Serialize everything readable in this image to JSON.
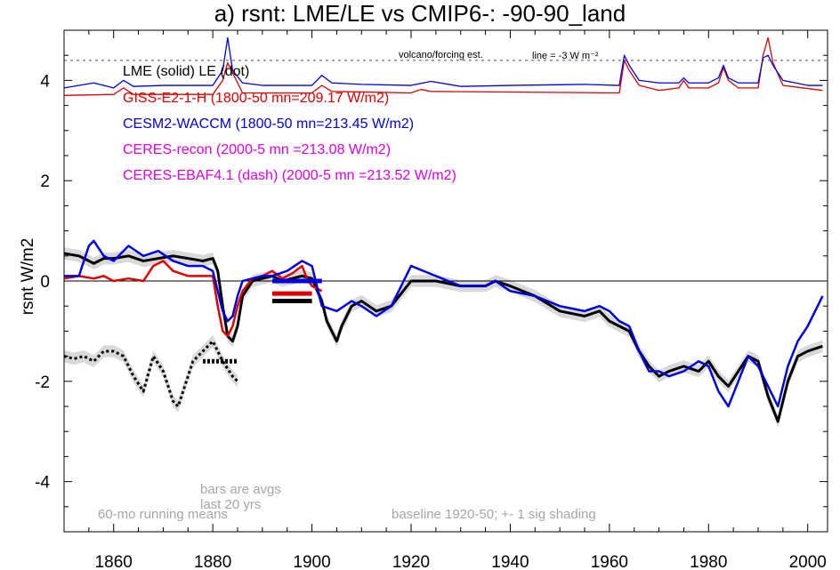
{
  "title": "a) rsnt: LME/LE vs CMIP6-: -90-90_land",
  "chart_data": {
    "type": "line",
    "title": "a) rsnt: LME/LE vs CMIP6-: -90-90_land",
    "xlabel": "",
    "ylabel": "rsnt W/m2",
    "xlim": [
      1850,
      2004
    ],
    "ylim": [
      -5.0,
      5.0
    ],
    "x_ticks": [
      1860,
      1880,
      1900,
      1920,
      1940,
      1960,
      1980,
      2000
    ],
    "y_ticks": [
      -4,
      -2,
      0,
      2,
      4
    ],
    "grid": false,
    "zero_line": 0,
    "legend": {
      "placement": "upper-left",
      "entries": [
        {
          "text": "LME (solid)   LE (dot)",
          "color": "#000000"
        },
        {
          "text": "GISS-E2-1-H (1800-50 mn=209.17 W/m2)",
          "color": "#e00000"
        },
        {
          "text": "CESM2-WACCM (1800-50 mn=213.45 W/m2)",
          "color": "#0000e0"
        },
        {
          "text": "CERES-recon (2000-5 mn =213.08 W/m2)",
          "color": "#e000e0"
        },
        {
          "text": "CERES-EBAF4.1 (dash) (2000-5 mn =213.52 W/m2)",
          "color": "#e000e0"
        }
      ]
    },
    "annotations": {
      "volcano_label": "volcano/forcing est.",
      "line_label": "line = -3 W m⁻²",
      "volcano_line_y": 4.4,
      "bars_note": "bars are avgs\nlast 20 yrs",
      "running_mean_note": "60-mo running means",
      "baseline_note": "baseline 1920-50; +- 1 sig shading"
    },
    "series": [
      {
        "name": "LME (solid)",
        "color": "#000000",
        "style": "solid",
        "x": [
          1850,
          1853,
          1856,
          1858,
          1860,
          1863,
          1866,
          1869,
          1872,
          1875,
          1878,
          1880,
          1881,
          1882,
          1883,
          1884,
          1885,
          1886,
          1888,
          1890,
          1892,
          1894,
          1896,
          1898,
          1900,
          1902,
          1903,
          1904,
          1905,
          1906,
          1908,
          1910,
          1913,
          1916,
          1920,
          1925,
          1930,
          1935,
          1937,
          1940,
          1945,
          1950,
          1955,
          1958,
          1960,
          1962,
          1964,
          1966,
          1968,
          1970,
          1972,
          1975,
          1978,
          1980,
          1982,
          1984,
          1986,
          1988,
          1990,
          1992,
          1994,
          1996,
          1998,
          2000,
          2003
        ],
        "y": [
          0.55,
          0.5,
          0.35,
          0.45,
          0.45,
          0.5,
          0.4,
          0.45,
          0.5,
          0.45,
          0.4,
          0.45,
          0.2,
          -0.5,
          -1.1,
          -1.2,
          -0.9,
          -0.3,
          0.0,
          0.05,
          0.1,
          0.0,
          0.05,
          0.1,
          0.05,
          -0.4,
          -0.8,
          -1.0,
          -1.2,
          -0.9,
          -0.5,
          -0.4,
          -0.6,
          -0.5,
          0.0,
          0.0,
          -0.1,
          -0.1,
          0.0,
          -0.1,
          -0.3,
          -0.6,
          -0.7,
          -0.6,
          -0.8,
          -0.9,
          -1.0,
          -1.4,
          -1.7,
          -1.9,
          -1.8,
          -1.7,
          -1.8,
          -1.6,
          -1.9,
          -2.1,
          -1.8,
          -1.5,
          -1.6,
          -2.3,
          -2.8,
          -2.0,
          -1.5,
          -1.4,
          -1.3
        ]
      },
      {
        "name": "LE (dot)",
        "color": "#000000",
        "style": "dot",
        "x": [
          1850,
          1852,
          1854,
          1856,
          1858,
          1860,
          1862,
          1864,
          1866,
          1868,
          1870,
          1872,
          1873,
          1874,
          1876,
          1878,
          1880,
          1882,
          1884,
          1885
        ],
        "y": [
          -1.5,
          -1.55,
          -1.5,
          -1.6,
          -1.4,
          -1.4,
          -1.5,
          -1.9,
          -2.2,
          -1.5,
          -1.8,
          -2.4,
          -2.5,
          -2.2,
          -1.6,
          -1.4,
          -1.2,
          -1.6,
          -1.9,
          -2.0
        ]
      },
      {
        "name": "GISS-E2-1-H (1800-50 mn=209.17 W/m2)",
        "color": "#e00000",
        "style": "solid",
        "x": [
          1850,
          1853,
          1856,
          1858,
          1860,
          1863,
          1866,
          1868,
          1870,
          1872,
          1875,
          1878,
          1880,
          1881,
          1882,
          1883,
          1884,
          1885,
          1886,
          1888,
          1890,
          1892,
          1894,
          1896,
          1898,
          1899,
          1900,
          1902
        ],
        "y": [
          0.05,
          0.1,
          0.05,
          0.1,
          0.0,
          0.05,
          0.0,
          0.3,
          0.4,
          0.2,
          0.1,
          0.1,
          0.1,
          -0.5,
          -1.0,
          -1.1,
          -0.9,
          -0.5,
          -0.2,
          0.05,
          0.1,
          0.2,
          0.05,
          0.15,
          0.3,
          0.05,
          -0.1,
          -0.2
        ]
      },
      {
        "name": "CESM2-WACCM (1800-50 mn=213.45 W/m2)",
        "color": "#0000e0",
        "style": "solid",
        "x": [
          1850,
          1853,
          1855,
          1856,
          1858,
          1860,
          1863,
          1866,
          1869,
          1872,
          1875,
          1878,
          1880,
          1882,
          1883,
          1884,
          1885,
          1886,
          1888,
          1890,
          1892,
          1895,
          1898,
          1900,
          1902,
          1905,
          1908,
          1910,
          1913,
          1916,
          1920,
          1925,
          1930,
          1935,
          1937,
          1940,
          1945,
          1950,
          1955,
          1958,
          1960,
          1962,
          1964,
          1966,
          1968,
          1970,
          1972,
          1975,
          1978,
          1980,
          1982,
          1984,
          1986,
          1988,
          1990,
          1992,
          1994,
          1996,
          1998,
          2000,
          2003
        ],
        "y": [
          0.1,
          0.1,
          0.7,
          0.8,
          0.5,
          0.4,
          0.7,
          0.5,
          0.6,
          0.4,
          0.3,
          0.3,
          0.2,
          -0.6,
          -0.8,
          -0.7,
          -0.3,
          0.0,
          0.05,
          0.1,
          0.1,
          0.2,
          0.4,
          0.3,
          -0.5,
          -0.6,
          -0.4,
          -0.5,
          -0.7,
          -0.5,
          0.3,
          0.1,
          -0.1,
          -0.1,
          0.0,
          -0.2,
          -0.3,
          -0.5,
          -0.6,
          -0.5,
          -0.6,
          -0.8,
          -0.9,
          -1.4,
          -1.8,
          -1.8,
          -1.9,
          -1.8,
          -1.6,
          -1.7,
          -2.2,
          -2.5,
          -2.0,
          -1.5,
          -1.7,
          -2.1,
          -2.5,
          -1.7,
          -1.2,
          -0.9,
          -0.3
        ]
      },
      {
        "name": "GISS volcano/forcing est.",
        "color": "#e00000",
        "style": "solid",
        "x": [
          1850,
          1860,
          1862,
          1864,
          1880,
          1882,
          1883,
          1884,
          1886,
          1900,
          1902,
          1904,
          1920,
          1922,
          1924,
          1962,
          1963,
          1964,
          1966,
          1970,
          1974,
          1975,
          1976,
          1980,
          1982,
          1983,
          1984,
          1986,
          1990,
          1991,
          1992,
          1993,
          1995,
          2003
        ],
        "y": [
          3.7,
          3.72,
          3.85,
          3.72,
          3.72,
          4.0,
          4.35,
          4.15,
          3.75,
          3.75,
          3.9,
          3.78,
          3.75,
          3.82,
          3.78,
          3.75,
          4.4,
          4.2,
          3.9,
          3.8,
          3.85,
          4.0,
          3.85,
          3.85,
          3.95,
          4.25,
          4.0,
          3.85,
          3.85,
          4.5,
          4.85,
          4.35,
          3.9,
          3.8
        ]
      },
      {
        "name": "CESM2 volcano/forcing est.",
        "color": "#0000e0",
        "style": "solid",
        "x": [
          1850,
          1856,
          1860,
          1862,
          1864,
          1870,
          1880,
          1882,
          1883,
          1884,
          1886,
          1890,
          1900,
          1902,
          1904,
          1910,
          1920,
          1924,
          1930,
          1940,
          1955,
          1962,
          1963,
          1964,
          1966,
          1970,
          1974,
          1975,
          1976,
          1980,
          1982,
          1983,
          1984,
          1986,
          1990,
          1991,
          1992,
          1993,
          1995,
          2000,
          2003
        ],
        "y": [
          3.85,
          3.95,
          3.85,
          4.0,
          3.88,
          3.9,
          3.9,
          4.2,
          4.85,
          4.2,
          3.95,
          3.9,
          3.9,
          4.1,
          3.95,
          3.92,
          3.9,
          3.98,
          3.88,
          3.9,
          3.92,
          3.9,
          4.5,
          4.3,
          4.0,
          3.95,
          3.95,
          4.05,
          3.95,
          3.95,
          4.05,
          4.3,
          4.05,
          3.95,
          3.95,
          4.45,
          4.5,
          4.3,
          4.0,
          3.9,
          3.9
        ]
      }
    ],
    "bars_last_20yrs": [
      {
        "name": "CESM2-WACCM",
        "color": "#0000e0",
        "x": [
          1892,
          1902
        ],
        "y": 0.0
      },
      {
        "name": "GISS-E2-1-H",
        "color": "#e00000",
        "x": [
          1892,
          1900
        ],
        "y": -0.25
      },
      {
        "name": "LME",
        "color": "#000000",
        "x": [
          1892,
          1900
        ],
        "y": -0.4
      },
      {
        "name": "LE",
        "color": "#000000",
        "x": [
          1878,
          1885
        ],
        "y": -1.6
      }
    ]
  }
}
